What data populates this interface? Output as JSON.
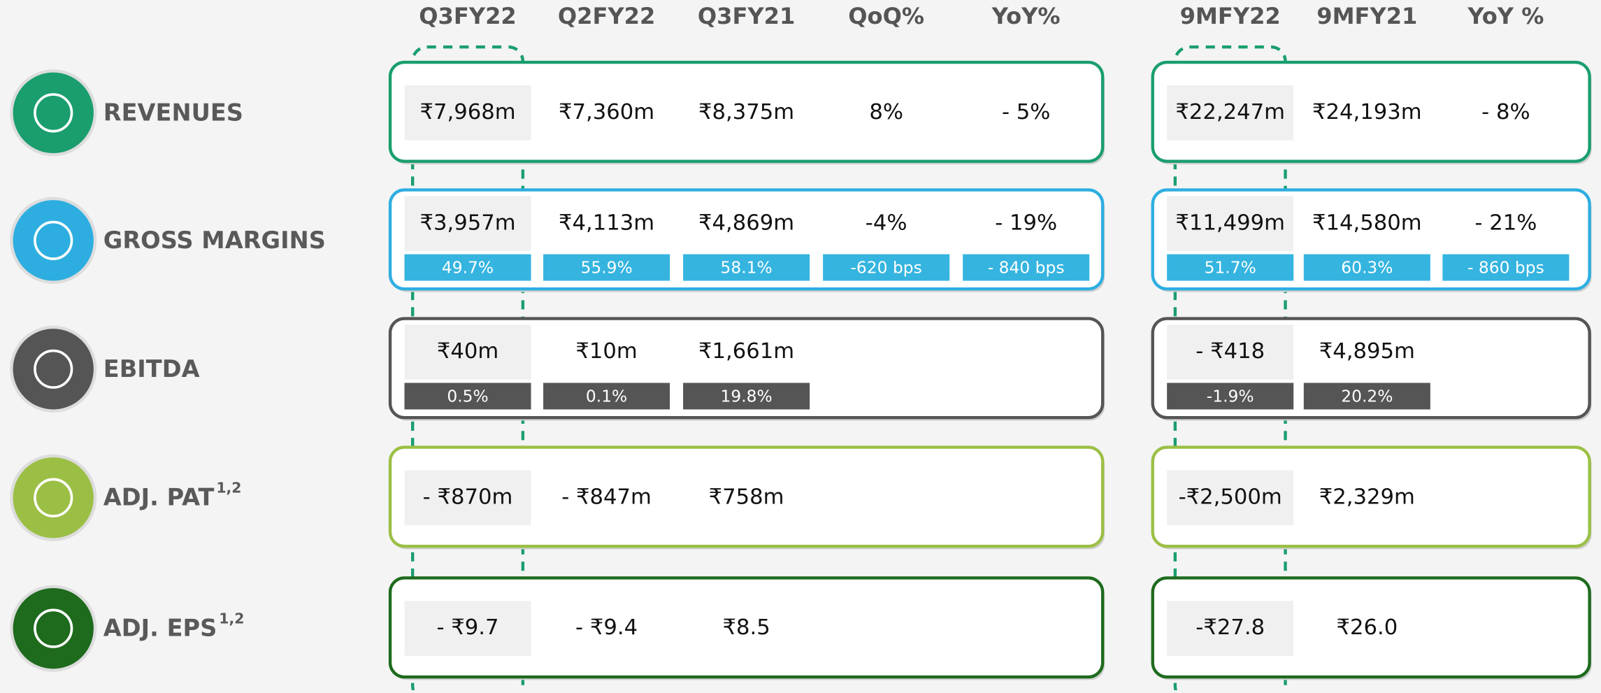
{
  "header": {
    "quarterly": [
      "Q3FY22",
      "Q2FY22",
      "Q3FY21",
      "QoQ%",
      "YoY%"
    ],
    "nine_month": [
      "9MFY22",
      "9MFY21",
      "YoY %"
    ]
  },
  "rows": [
    {
      "label": "REVENUES",
      "color": "#1a9e6e",
      "quarterly": [
        "₹7,968m",
        "₹7,360m",
        "₹8,375m",
        "8%",
        "- 5%"
      ],
      "nine_month": [
        "₹22,247m",
        "₹24,193m",
        "- 8%"
      ]
    },
    {
      "label": "GROSS MARGINS",
      "color": "#2eaee0",
      "sub_color": "#35b4e0",
      "quarterly": [
        "₹3,957m",
        "₹4,113m",
        "₹4,869m",
        "-4%",
        "- 19%"
      ],
      "quarterly_sub": [
        "49.7%",
        "55.9%",
        "58.1%",
        "-620 bps",
        "- 840 bps"
      ],
      "nine_month": [
        "₹11,499m",
        "₹14,580m",
        "- 21%"
      ],
      "nine_month_sub": [
        "51.7%",
        "60.3%",
        "- 860 bps"
      ]
    },
    {
      "label": "EBITDA",
      "color": "#555555",
      "sub_color": "#555555",
      "quarterly": [
        "₹40m",
        "₹10m",
        "₹1,661m"
      ],
      "quarterly_sub": [
        "0.5%",
        "0.1%",
        "19.8%"
      ],
      "nine_month": [
        "- ₹418",
        "₹4,895m"
      ],
      "nine_month_sub": [
        "-1.9%",
        "20.2%"
      ]
    },
    {
      "label": "ADJ. PAT",
      "sup": "1,2",
      "color": "#9bbf45",
      "quarterly": [
        "- ₹870m",
        "- ₹847m",
        "₹758m"
      ],
      "nine_month": [
        "-₹2,500m",
        "₹2,329m"
      ]
    },
    {
      "label": "ADJ. EPS",
      "sup": "1,2",
      "color": "#1e6b1e",
      "quarterly": [
        "- ₹9.7",
        "- ₹9.4",
        "₹8.5"
      ],
      "nine_month": [
        "-₹27.8",
        "₹26.0"
      ]
    }
  ]
}
